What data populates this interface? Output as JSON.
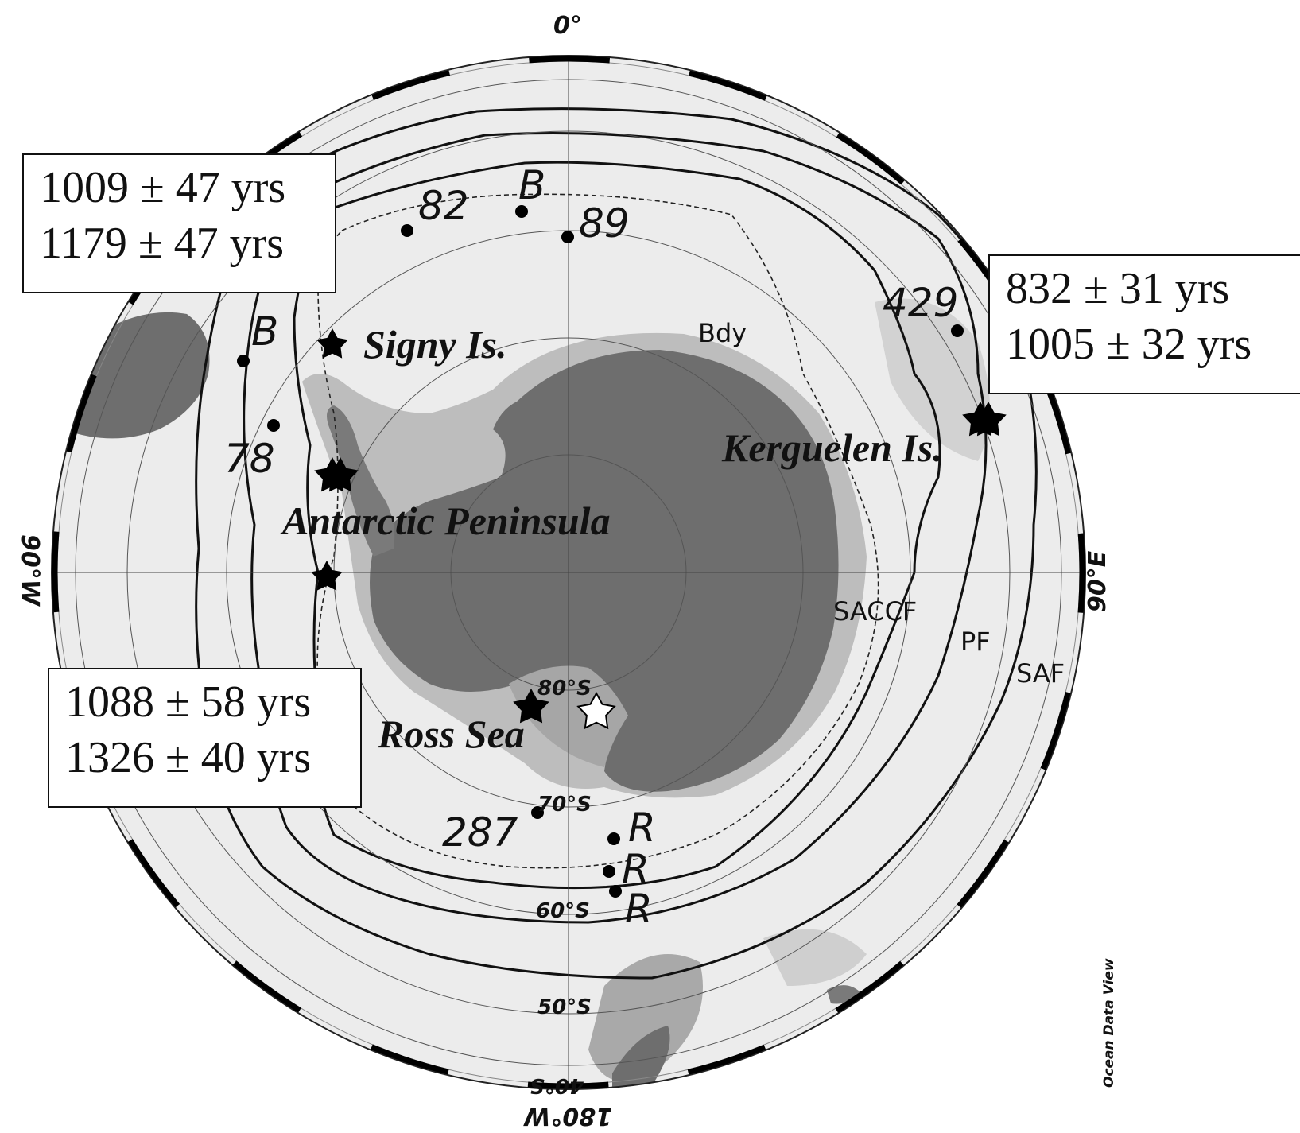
{
  "map": {
    "longitude_labels": {
      "top": "0°",
      "left": "90°W",
      "right": "90°E",
      "bottom": "180°W"
    },
    "latitude_labels": [
      "80°S",
      "70°S",
      "60°S",
      "50°S",
      "40°S"
    ],
    "place_labels": {
      "signy": "Signy Is.",
      "kerguelen": "Kerguelen Is.",
      "peninsula": "Antarctic Peninsula",
      "ross": "Ross Sea"
    },
    "site_numbers": {
      "n82": "82",
      "n89": "89",
      "n429": "429",
      "n78": "78",
      "n287": "287",
      "b_top": "B",
      "b_left": "B",
      "r1": "R",
      "r2": "R",
      "r3": "R"
    },
    "front_labels": {
      "bdy": "Bdy",
      "saccf": "SACCF",
      "pf": "PF",
      "saf": "SAF"
    },
    "credit": "Ocean Data View"
  },
  "age_boxes": {
    "nw": [
      "1009 ± 47 yrs",
      "1179 ± 47 yrs"
    ],
    "ne": [
      "832 ± 31 yrs",
      "1005 ± 32 yrs"
    ],
    "sw": [
      "1088 ± 58 yrs",
      "1326 ± 40 yrs"
    ]
  },
  "colors": {
    "land": "#6e6e6e",
    "shelf": "#bdbdbd",
    "ocean": "#ececec",
    "ink": "#111111"
  }
}
